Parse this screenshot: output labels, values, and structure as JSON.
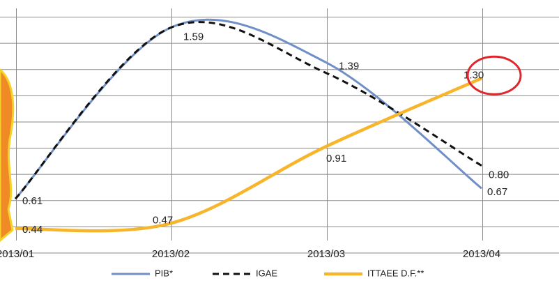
{
  "chart_data": {
    "type": "line",
    "categories": [
      "2013/01",
      "2013/02",
      "2013/03",
      "2013/04"
    ],
    "series": [
      {
        "name": "PIB*",
        "color": "#6f8fc6",
        "dash": false,
        "values": [
          0.61,
          1.59,
          1.39,
          0.67
        ],
        "value_labels": [
          "0.61",
          "1.59",
          "1.39",
          "0.67"
        ]
      },
      {
        "name": "IGAE",
        "color": "#111111",
        "dash": true,
        "values": [
          0.61,
          1.59,
          1.33,
          0.8
        ],
        "value_labels": [
          null,
          null,
          null,
          "0.80"
        ]
      },
      {
        "name": "ITTAEE D.F.**",
        "color": "#f7b52b",
        "dash": false,
        "values": [
          0.44,
          0.47,
          0.91,
          1.3
        ],
        "value_labels": [
          "0.44",
          "0.47",
          "0.91",
          "1.30"
        ]
      }
    ],
    "ylim": [
      0.3,
      1.7
    ],
    "yticks": [
      0.3,
      0.45,
      0.6,
      0.75,
      0.9,
      1.05,
      1.2,
      1.35,
      1.5,
      1.65
    ],
    "grid": true
  }
}
